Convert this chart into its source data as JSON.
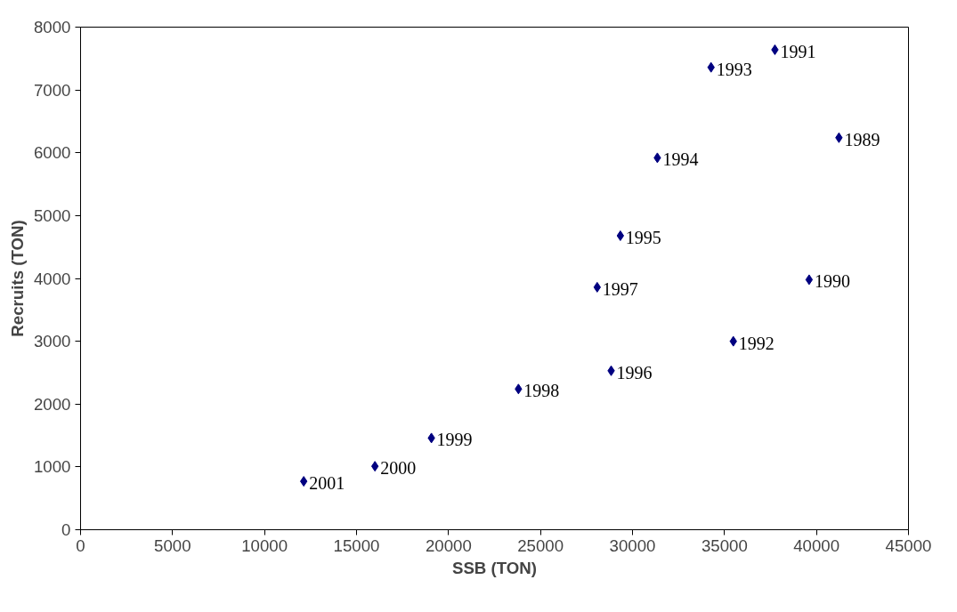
{
  "chart_data": {
    "type": "scatter",
    "xlabel": "SSB (TON)",
    "ylabel": "Recruits (TON)",
    "x": [
      41220,
      39600,
      37740,
      35480,
      34270,
      31350,
      29340,
      28840,
      28080,
      23800,
      19070,
      16000,
      12130
    ],
    "series": [
      {
        "color": "#000080",
        "values": [
          6240,
          3980,
          7640,
          3000,
          7360,
          5920,
          4680,
          2530,
          3860,
          2240,
          1460,
          1010,
          770
        ]
      }
    ],
    "annotations": [
      {
        "text": "1989",
        "x": 41220,
        "y": 6240
      },
      {
        "text": "1990",
        "x": 39600,
        "y": 3980
      },
      {
        "text": "1991",
        "x": 37740,
        "y": 7640
      },
      {
        "text": "1992",
        "x": 35480,
        "y": 3000
      },
      {
        "text": "1993",
        "x": 34270,
        "y": 7360
      },
      {
        "text": "1994",
        "x": 31350,
        "y": 5920
      },
      {
        "text": "1995",
        "x": 29340,
        "y": 4680
      },
      {
        "text": "1996",
        "x": 28840,
        "y": 2530
      },
      {
        "text": "1997",
        "x": 28080,
        "y": 3860
      },
      {
        "text": "1998",
        "x": 23800,
        "y": 2240
      },
      {
        "text": "1999",
        "x": 19070,
        "y": 1460
      },
      {
        "text": "2000",
        "x": 16000,
        "y": 1010
      },
      {
        "text": "2001",
        "x": 12130,
        "y": 770
      }
    ],
    "xlim": [
      0,
      45000
    ],
    "xticks": [
      0,
      5000,
      10000,
      15000,
      20000,
      25000,
      30000,
      35000,
      40000,
      45000
    ],
    "ylim": [
      0,
      8000
    ],
    "yticks": [
      0,
      1000,
      2000,
      3000,
      4000,
      5000,
      6000,
      7000,
      8000
    ],
    "marker": "diamond",
    "grid": false
  }
}
